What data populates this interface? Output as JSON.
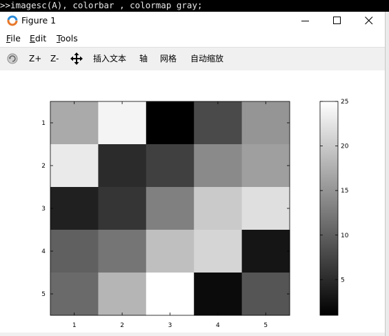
{
  "command_window": {
    "text": ">>imagesc(A), colorbar , colormap gray;"
  },
  "window": {
    "title": "Figure 1",
    "controls": {
      "minimize": "minimize",
      "maximize": "maximize",
      "close": "close"
    }
  },
  "menu": {
    "items": [
      {
        "label": "File",
        "key": "F",
        "rest": "ile"
      },
      {
        "label": "Edit",
        "key": "E",
        "rest": "dit"
      },
      {
        "label": "Tools",
        "key": "T",
        "rest": "ools"
      }
    ]
  },
  "toolbar": {
    "rotate_icon": "rotate-3d-icon",
    "zoom_in": "Z+",
    "zoom_out": "Z-",
    "pan_icon": "pan-icon",
    "insert_text": "插入文本",
    "axis": "轴",
    "grid": "网格",
    "autoscale": "自动缩放"
  },
  "chart_data": {
    "type": "heatmap",
    "colormap": "gray",
    "x_ticks": [
      "1",
      "2",
      "3",
      "4",
      "5"
    ],
    "y_ticks": [
      "1",
      "2",
      "3",
      "4",
      "5"
    ],
    "values": [
      [
        17,
        24,
        1,
        8,
        15
      ],
      [
        23,
        5,
        7,
        14,
        16
      ],
      [
        4,
        6,
        13,
        20,
        22
      ],
      [
        10,
        12,
        19,
        21,
        3
      ],
      [
        11,
        18,
        25,
        2,
        9
      ]
    ],
    "clim": [
      1,
      25
    ],
    "colorbar": {
      "ticks": [
        "5",
        "10",
        "15",
        "20",
        "25"
      ],
      "tick_values": [
        5,
        10,
        15,
        20,
        25
      ]
    }
  }
}
